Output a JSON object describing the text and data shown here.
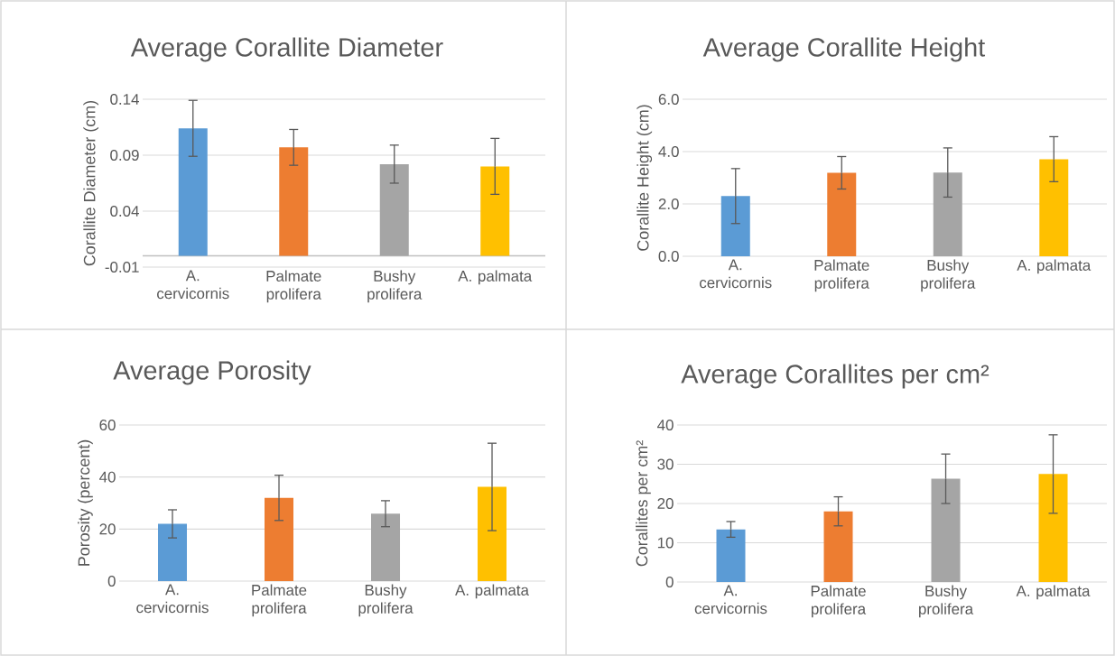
{
  "chart_data": [
    {
      "type": "bar",
      "title": "Average Corallite Diameter",
      "ylabel": "Corallite Diameter (cm)",
      "categories": [
        "A. cervicornis",
        "Palmate prolifera",
        "Bushy prolifera",
        "A. palmata"
      ],
      "values": [
        0.114,
        0.097,
        0.082,
        0.08
      ],
      "errors": [
        0.025,
        0.016,
        0.017,
        0.025
      ],
      "colors": [
        "#5b9bd5",
        "#ed7d31",
        "#a5a5a5",
        "#ffc000"
      ],
      "ylim": [
        -0.01,
        0.14
      ],
      "yticks": [
        -0.01,
        0.04,
        0.09,
        0.14
      ],
      "grid": "y",
      "ref_lines": [
        {
          "axis": "y",
          "value": 0,
          "color": "#bfbfbf"
        }
      ]
    },
    {
      "type": "bar",
      "title": "Average Corallite Height",
      "ylabel": "Corallite Height (cm)",
      "categories": [
        "A. cervicornis",
        "Palmate prolifera",
        "Bushy prolifera",
        "A. palmata"
      ],
      "values": [
        2.3,
        3.19,
        3.2,
        3.71
      ],
      "errors": [
        1.05,
        0.62,
        0.94,
        0.86
      ],
      "colors": [
        "#5b9bd5",
        "#ed7d31",
        "#a5a5a5",
        "#ffc000"
      ],
      "ylim": [
        0,
        6
      ],
      "yticks": [
        {
          "value": 0,
          "label": "0.0"
        },
        {
          "value": 2,
          "label": "2.0"
        },
        {
          "value": 4,
          "label": "4.0"
        },
        {
          "value": 6,
          "label": "6.0"
        }
      ],
      "grid": "y"
    },
    {
      "type": "bar",
      "title": "Average Porosity",
      "ylabel": "Porosity (percent)",
      "categories": [
        "A. cervicornis",
        "Palmate prolifera",
        "Bushy prolifera",
        "A. palmata"
      ],
      "values": [
        22.0,
        32.0,
        25.9,
        36.2
      ],
      "errors": [
        5.4,
        8.7,
        5.0,
        16.8
      ],
      "colors": [
        "#5b9bd5",
        "#ed7d31",
        "#a5a5a5",
        "#ffc000"
      ],
      "ylim": [
        0,
        60
      ],
      "yticks": [
        0,
        20,
        40,
        60
      ],
      "grid": "y"
    },
    {
      "type": "bar",
      "title": "Average Corallites per cm²",
      "ylabel": "Corallites per cm²",
      "categories": [
        "A. cervicornis",
        "Palmate prolifera",
        "Bushy prolifera",
        "A. palmata"
      ],
      "values": [
        13.4,
        18.0,
        26.3,
        27.5
      ],
      "errors": [
        2.0,
        3.7,
        6.3,
        10.0
      ],
      "colors": [
        "#5b9bd5",
        "#ed7d31",
        "#a5a5a5",
        "#ffc000"
      ],
      "ylim": [
        0,
        40
      ],
      "yticks": [
        0,
        10,
        20,
        30,
        40
      ],
      "grid": "y"
    }
  ]
}
